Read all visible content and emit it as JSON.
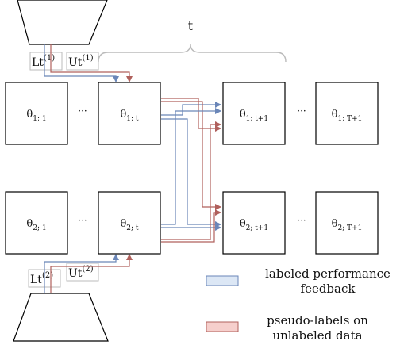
{
  "brace_label": "t",
  "models": {
    "top": {
      "L_prefix": "Lt",
      "L_sup": "(1)",
      "U_prefix": "Ut",
      "U_sup": "(1)"
    },
    "bottom": {
      "L_prefix": "Lt",
      "L_sup": "(2)",
      "U_prefix": "Ut",
      "U_sup": "(2)"
    }
  },
  "rows": [
    {
      "sym": "θ",
      "cells": [
        {
          "sub": "1; 1"
        },
        {
          "ellipsis": "···"
        },
        {
          "sub": "1; t"
        },
        {
          "sub": "1; t+1"
        },
        {
          "ellipsis": "···"
        },
        {
          "sub": "1; T+1"
        }
      ]
    },
    {
      "sym": "θ",
      "cells": [
        {
          "sub": "2; 1"
        },
        {
          "ellipsis": "···"
        },
        {
          "sub": "2; t"
        },
        {
          "sub": "2; t+1"
        },
        {
          "ellipsis": "···"
        },
        {
          "sub": "2; T+1"
        }
      ]
    }
  ],
  "legend": {
    "items": [
      {
        "text_line1": "labeled performance",
        "text_line2": "feedback",
        "color": "#dce7f5",
        "stroke": "#6a86b8"
      },
      {
        "text_line1": "pseudo-labels on",
        "text_line2": "unlabeled data",
        "color": "#f6cfcc",
        "stroke": "#b0605c"
      }
    ]
  },
  "colors": {
    "blue": "#6a86b8",
    "red": "#b0605c"
  }
}
